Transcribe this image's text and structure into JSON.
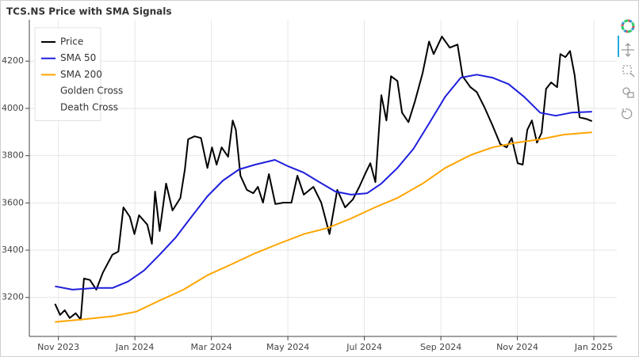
{
  "chart_data": {
    "type": "line",
    "title": "TCS.NS Price with SMA Signals",
    "xlim": [
      2023.77,
      2025.05
    ],
    "xticks": [
      {
        "value": 2023.8333,
        "label": "Nov 2023"
      },
      {
        "value": 2024.0,
        "label": "Jan 2024"
      },
      {
        "value": 2024.1667,
        "label": "Mar 2024"
      },
      {
        "value": 2024.3333,
        "label": "May 2024"
      },
      {
        "value": 2024.5,
        "label": "Jul 2024"
      },
      {
        "value": 2024.6667,
        "label": "Sep 2024"
      },
      {
        "value": 2024.8333,
        "label": "Nov 2024"
      },
      {
        "value": 2025.0,
        "label": "Jan 2025"
      }
    ],
    "ylim": [
      3035,
      4375
    ],
    "yticks": [
      3200,
      3400,
      3600,
      3800,
      4000,
      4200
    ],
    "grid": true,
    "legend": "top-left",
    "series": [
      {
        "name": "Price",
        "color": "#000000",
        "x": [
          2023.826,
          2023.837,
          2023.847,
          2023.858,
          2023.871,
          2023.882,
          2023.889,
          2023.902,
          2023.916,
          2023.93,
          2023.951,
          2023.964,
          2023.975,
          2023.989,
          2023.999,
          2024.009,
          2024.027,
          2024.037,
          2024.044,
          2024.054,
          2024.068,
          2024.082,
          2024.099,
          2024.109,
          2024.116,
          2024.13,
          2024.144,
          2024.158,
          2024.168,
          2024.178,
          2024.189,
          2024.203,
          2024.213,
          2024.22,
          2024.23,
          2024.244,
          2024.258,
          2024.268,
          2024.279,
          2024.292,
          2024.306,
          2024.324,
          2024.341,
          2024.354,
          2024.368,
          2024.389,
          2024.406,
          2024.424,
          2024.441,
          2024.458,
          2024.475,
          2024.489,
          2024.503,
          2024.513,
          2024.524,
          2024.537,
          2024.548,
          2024.558,
          2024.572,
          2024.582,
          2024.596,
          2024.61,
          2024.627,
          2024.641,
          2024.651,
          2024.669,
          2024.686,
          2024.703,
          2024.714,
          2024.731,
          2024.745,
          2024.762,
          2024.779,
          2024.796,
          2024.81,
          2024.821,
          2024.834,
          2024.845,
          2024.855,
          2024.865,
          2024.876,
          2024.886,
          2024.896,
          2024.907,
          2024.92,
          2024.927,
          2024.938,
          2024.948,
          2024.958,
          2024.969,
          2024.983,
          2024.996
        ],
        "values": [
          3173,
          3126,
          3146,
          3113,
          3133,
          3106,
          3280,
          3274,
          3233,
          3304,
          3381,
          3394,
          3581,
          3541,
          3468,
          3548,
          3508,
          3427,
          3648,
          3481,
          3682,
          3568,
          3621,
          3742,
          3869,
          3882,
          3875,
          3748,
          3835,
          3762,
          3835,
          3795,
          3949,
          3909,
          3715,
          3655,
          3641,
          3668,
          3601,
          3722,
          3595,
          3601,
          3601,
          3715,
          3635,
          3668,
          3601,
          3468,
          3655,
          3581,
          3615,
          3668,
          3728,
          3768,
          3688,
          4056,
          3949,
          4136,
          4116,
          3982,
          3942,
          4029,
          4150,
          4283,
          4230,
          4304,
          4257,
          4270,
          4136,
          4090,
          4069,
          4003,
          3929,
          3849,
          3835,
          3875,
          3768,
          3762,
          3909,
          3949,
          3855,
          3896,
          4083,
          4110,
          4090,
          4230,
          4217,
          4243,
          4143,
          3962,
          3956,
          3946
        ]
      },
      {
        "name": "SMA 50",
        "color": "#1f1fdd",
        "x": [
          2023.826,
          2023.864,
          2023.916,
          2023.951,
          2023.985,
          2024.02,
          2024.054,
          2024.089,
          2024.123,
          2024.158,
          2024.192,
          2024.227,
          2024.262,
          2024.305,
          2024.334,
          2024.368,
          2024.402,
          2024.437,
          2024.471,
          2024.506,
          2024.537,
          2024.572,
          2024.607,
          2024.641,
          2024.676,
          2024.71,
          2024.745,
          2024.779,
          2024.814,
          2024.848,
          2024.883,
          2024.917,
          2024.951,
          2024.996
        ],
        "values": [
          3247,
          3233,
          3240,
          3240,
          3267,
          3314,
          3381,
          3454,
          3541,
          3628,
          3695,
          3742,
          3762,
          3782,
          3755,
          3728,
          3688,
          3648,
          3635,
          3641,
          3682,
          3748,
          3829,
          3936,
          4049,
          4130,
          4143,
          4130,
          4103,
          4049,
          3982,
          3969,
          3982,
          3986
        ]
      },
      {
        "name": "SMA 200",
        "color": "#ffa500",
        "x": [
          2023.826,
          2023.882,
          2023.951,
          2024.003,
          2024.054,
          2024.106,
          2024.158,
          2024.21,
          2024.262,
          2024.313,
          2024.368,
          2024.42,
          2024.471,
          2024.523,
          2024.572,
          2024.627,
          2024.676,
          2024.731,
          2024.779,
          2024.831,
          2024.883,
          2024.934,
          2024.996
        ],
        "values": [
          3096,
          3106,
          3120,
          3140,
          3187,
          3233,
          3294,
          3340,
          3387,
          3427,
          3468,
          3494,
          3534,
          3581,
          3621,
          3682,
          3748,
          3802,
          3835,
          3855,
          3869,
          3889,
          3899
        ]
      },
      {
        "name": "Golden Cross",
        "x": [],
        "values": []
      },
      {
        "name": "Death Cross",
        "x": [],
        "values": []
      }
    ]
  }
}
